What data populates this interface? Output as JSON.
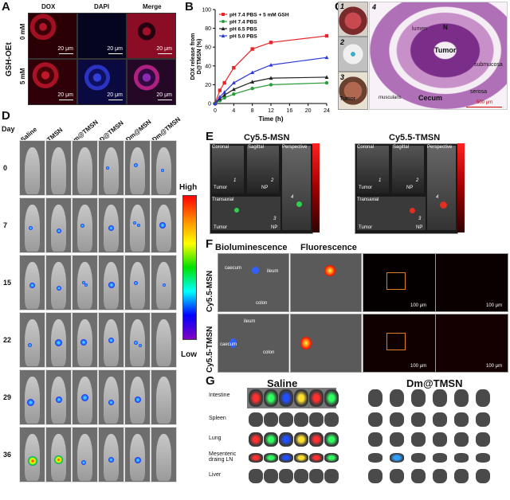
{
  "panels": {
    "A": "A",
    "B": "B",
    "C": "C",
    "D": "D",
    "E": "E",
    "F": "F",
    "G": "G"
  },
  "panel_a": {
    "row_title": "GSH-OEt",
    "columns": [
      "DOX",
      "DAPI",
      "Merge"
    ],
    "rows": [
      "0 mM",
      "5 mM"
    ],
    "scale": "20 μm"
  },
  "chart_data": {
    "type": "line",
    "x": [
      0,
      1,
      2,
      4,
      8,
      12,
      24
    ],
    "xlabel": "Time (h)",
    "ylabel": "DOX release from D@TMSN (%)",
    "xlim": [
      0,
      24
    ],
    "ylim": [
      0,
      100
    ],
    "xticks": [
      0,
      4,
      8,
      12,
      16,
      20,
      24
    ],
    "yticks": [
      0,
      20,
      40,
      60,
      80,
      100
    ],
    "legend": "top-left",
    "series": [
      {
        "name": "pH 7.4 PBS + 5 mM GSH",
        "color": "#e8262a",
        "marker": "square",
        "values": [
          0,
          14,
          22,
          38,
          58,
          65,
          72
        ]
      },
      {
        "name": "pH 7.4 PBS",
        "color": "#2a9d3a",
        "marker": "circle",
        "values": [
          0,
          3,
          6,
          10,
          16,
          20,
          22
        ]
      },
      {
        "name": "pH 6.5 PBS",
        "color": "#222222",
        "marker": "triangle",
        "values": [
          0,
          5,
          9,
          15,
          23,
          27,
          28
        ]
      },
      {
        "name": "pH 5.0 PBS",
        "color": "#2e3bdc",
        "marker": "triangle",
        "values": [
          0,
          7,
          12,
          22,
          33,
          41,
          49
        ]
      }
    ]
  },
  "panel_c": {
    "nums": [
      "1",
      "2",
      "3",
      "4"
    ],
    "tumor_label": "Tumor",
    "labels": {
      "lumen": "lumen",
      "n": "N",
      "tumor": "Tumor",
      "submucosa": "submucosa",
      "muscularis": "muscularis",
      "cecum": "Cecum",
      "serosa": "serosa"
    },
    "scale": "500 μm"
  },
  "panel_d": {
    "day_label": "Day",
    "groups": [
      "Saline",
      "TMSN",
      "m@TMSN",
      "D@TMSN",
      "Dm@MSN",
      "Dm@TMSN"
    ],
    "days": [
      "0",
      "7",
      "15",
      "22",
      "29",
      "36"
    ],
    "colorbar_high": "High",
    "colorbar_low": "Low"
  },
  "panel_e": {
    "left_title": "Cy5.5-MSN",
    "right_title": "Cy5.5-TMSN",
    "views": {
      "coronal": "Coronal",
      "sagittal": "Sagittal",
      "perspective": "Perspective",
      "transaxial": "Transaxial"
    },
    "tumor": "Tumor",
    "np": "NP",
    "nums": [
      "1",
      "2",
      "3",
      "4"
    ]
  },
  "panel_f": {
    "bio_title": "Bioluminescence",
    "fluo_title": "Fluorescence",
    "rows": [
      "Cy5.5-MSN",
      "Cy5.5-TMSN"
    ],
    "tissue": {
      "caecum": "caecum",
      "ileum": "ileum",
      "colon": "colon"
    },
    "scale": "100 μm"
  },
  "panel_g": {
    "left_title": "Saline",
    "right_title": "Dm@TMSN",
    "organs": [
      "Intestine",
      "Spleen",
      "Lung",
      "Mesenteric draing LN",
      "Liver"
    ]
  }
}
